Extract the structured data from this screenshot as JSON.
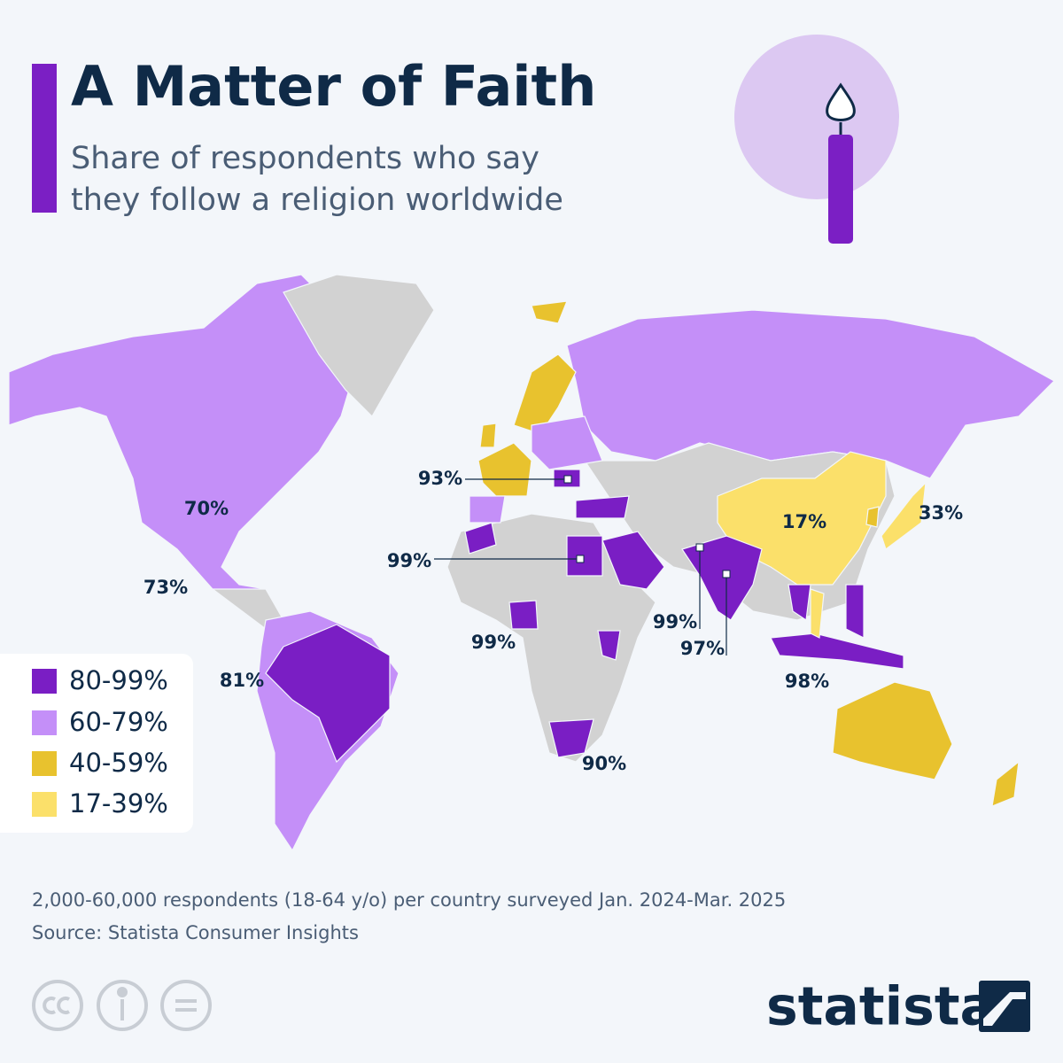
{
  "header": {
    "title": "A Matter of Faith",
    "subtitle": [
      "Share of respondents who say",
      "they follow a religion worldwide"
    ]
  },
  "map": {
    "labels": [
      "70%",
      "73%",
      "81%",
      "93%",
      "99%",
      "99%",
      "99%",
      "97%",
      "98%",
      "17%",
      "33%",
      "90%"
    ]
  },
  "legend": [
    "80-99%",
    "60-79%",
    "40-59%",
    "17-39%"
  ],
  "footer": {
    "note": "2,000-60,000 respondents (18-64 y/o) per country surveyed Jan. 2024-Mar. 2025",
    "source": "Source: Statista Consumer Insights",
    "brand": "statista"
  }
}
